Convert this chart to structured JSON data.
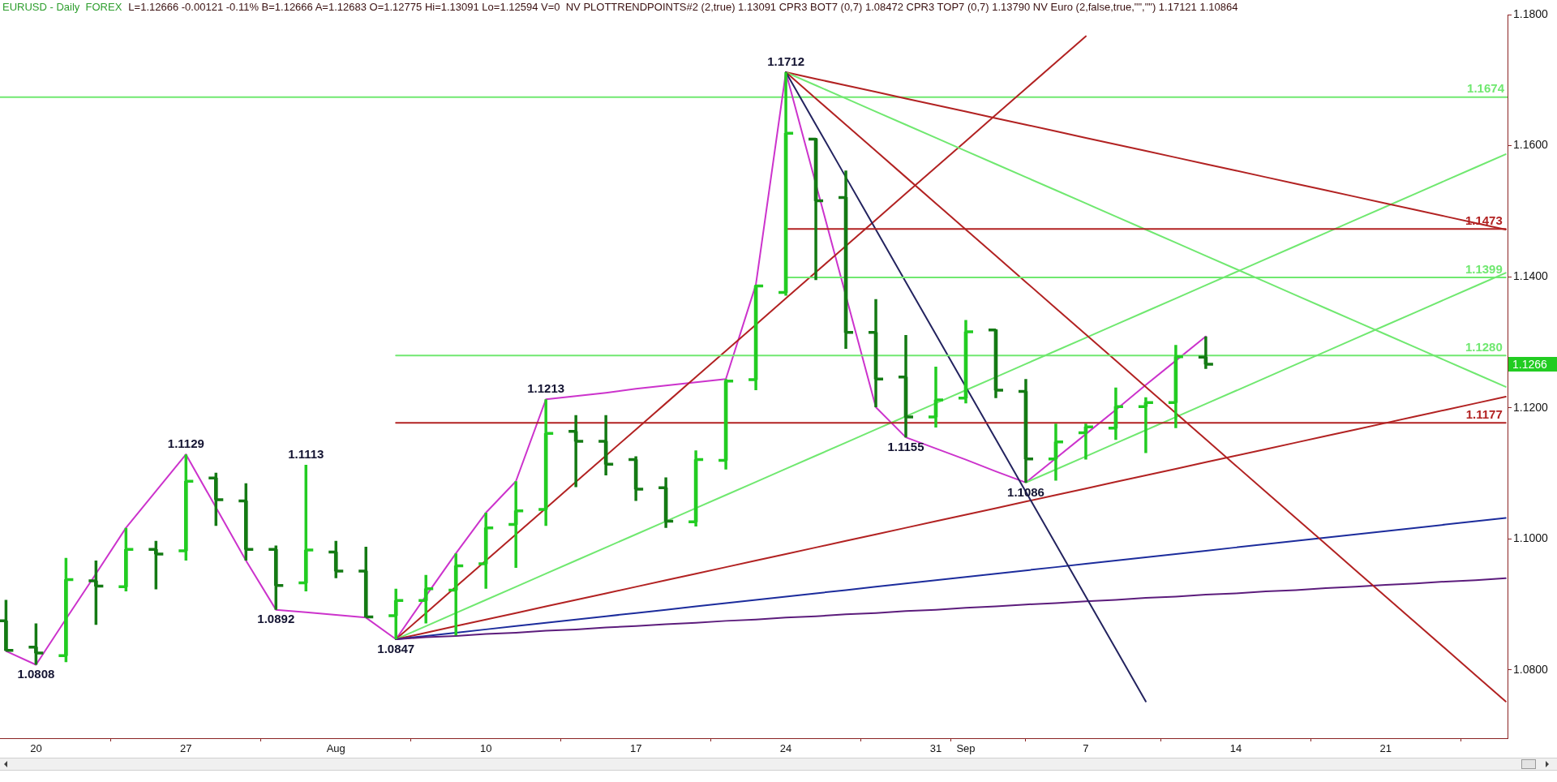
{
  "chart_data": {
    "type": "candlestick",
    "title": "EURUSD - Daily  FOREX",
    "subtitle": "L=1.12666 -0.00121 -0.11% B=1.12666 A=1.12683 O=1.12775 Hi=1.13091 Lo=1.12594 V=0  NV PLOTTRENDPOINTS#2 (2,true) 1.13091 CPR3 BOT7 (0,7) 1.08472 CPR3 TOP7 (0,7) 1.13790 NV Euro (2,false,true,\"\",\"\") 1.17121 1.10864",
    "color": "#22cc22",
    "colors": [
      "#147a14",
      "#147a14",
      "#22cc22",
      "#147a14",
      "#22cc22",
      "#147a14",
      "#22cc22",
      "#147a14",
      "#147a14",
      "#147a14",
      "#22cc22",
      "#147a14",
      "#147a14",
      "#22cc22",
      "#22cc22",
      "#22cc22",
      "#22cc22",
      "#22cc22",
      "#22cc22",
      "#147a14",
      "#147a14",
      "#147a14",
      "#147a14",
      "#22cc22",
      "#22cc22",
      "#22cc22",
      "#22cc22",
      "#147a14",
      "#147a14",
      "#147a14",
      "#147a14",
      "#22cc22",
      "#22cc22",
      "#147a14",
      "#147a14",
      "#22cc22",
      "#22cc22",
      "#22cc22",
      "#22cc22",
      "#22cc22",
      "#147a14",
      null,
      null,
      null,
      null,
      null,
      null,
      null,
      null,
      null,
      null
    ],
    "categories": [
      null,
      "20",
      null,
      null,
      null,
      null,
      "27",
      null,
      null,
      null,
      null,
      "Aug",
      null,
      null,
      null,
      null,
      "10",
      null,
      null,
      null,
      null,
      "17",
      null,
      null,
      null,
      null,
      "24",
      null,
      null,
      null,
      null,
      "31",
      "Sep",
      null,
      null,
      null,
      "7",
      null,
      null,
      null,
      null,
      "14",
      null,
      null,
      null,
      null,
      "21",
      null,
      null,
      null,
      null
    ],
    "ohlc": [
      [
        1.0875,
        1.0907,
        1.0829,
        1.083
      ],
      [
        1.0835,
        1.0871,
        1.0808,
        1.0826
      ],
      [
        1.0822,
        1.0971,
        1.0812,
        1.0938
      ],
      [
        1.0936,
        1.0967,
        1.0869,
        1.0928
      ],
      [
        1.0927,
        1.1017,
        1.092,
        1.0984
      ],
      [
        1.0984,
        1.0997,
        1.0923,
        1.0977
      ],
      [
        1.0982,
        1.1129,
        1.0967,
        1.1088
      ],
      [
        1.1093,
        1.1101,
        1.102,
        1.106
      ],
      [
        1.1058,
        1.1085,
        1.0967,
        1.0984
      ],
      [
        1.0984,
        1.099,
        1.0892,
        1.0929
      ],
      [
        1.0933,
        1.1113,
        1.092,
        1.0983
      ],
      [
        1.098,
        1.0997,
        1.094,
        1.0951
      ],
      [
        1.0951,
        1.0988,
        1.088,
        1.0881
      ],
      [
        1.0883,
        1.0924,
        1.0847,
        1.0906
      ],
      [
        1.0906,
        1.0945,
        1.0871,
        1.0924
      ],
      [
        1.0922,
        1.0978,
        1.0853,
        1.0959
      ],
      [
        1.0962,
        1.104,
        1.0924,
        1.1017
      ],
      [
        1.1022,
        1.1088,
        1.0956,
        1.1043
      ],
      [
        1.1045,
        1.1213,
        1.102,
        1.1161
      ],
      [
        1.1164,
        1.1189,
        1.1079,
        1.1149
      ],
      [
        1.1149,
        1.1189,
        1.1097,
        1.1114
      ],
      [
        1.1121,
        1.1126,
        1.1058,
        1.1076
      ],
      [
        1.1078,
        1.1094,
        1.1017,
        1.1027
      ],
      [
        1.1026,
        1.1135,
        1.1019,
        1.1121
      ],
      [
        1.112,
        1.1244,
        1.1106,
        1.1241
      ],
      [
        1.1243,
        1.1388,
        1.1227,
        1.1386
      ],
      [
        1.1376,
        1.1712,
        1.1371,
        1.1619
      ],
      [
        1.161,
        1.1612,
        1.1395,
        1.1516
      ],
      [
        1.1521,
        1.1562,
        1.129,
        1.1315
      ],
      [
        1.1315,
        1.1366,
        1.1201,
        1.1244
      ],
      [
        1.1247,
        1.1311,
        1.1155,
        1.1186
      ],
      [
        1.1186,
        1.1263,
        1.117,
        1.1212
      ],
      [
        1.1215,
        1.1334,
        1.1207,
        1.1316
      ],
      [
        1.1319,
        1.132,
        1.1215,
        1.1227
      ],
      [
        1.1225,
        1.1244,
        1.1086,
        1.1122
      ],
      [
        1.1122,
        1.1176,
        1.1089,
        1.1148
      ],
      [
        1.1162,
        1.1176,
        1.1121,
        1.1171
      ],
      [
        1.1169,
        1.1231,
        1.1151,
        1.1202
      ],
      [
        1.1202,
        1.1216,
        1.1131,
        1.1208
      ],
      [
        1.1208,
        1.1296,
        1.1169,
        1.1278
      ],
      [
        1.12775,
        1.13091,
        1.12594,
        1.12666
      ],
      null,
      null,
      null,
      null,
      null,
      null,
      null,
      null,
      null,
      null
    ],
    "series": [
      {
        "type": "line",
        "color": "#cc33cc",
        "values": [
          1.0829,
          1.0808,
          1.0878,
          1.0947,
          1.1017,
          1.1073,
          1.1129,
          1.1048,
          1.0967,
          1.0892,
          1.0888,
          1.0884,
          1.088,
          1.0847,
          1.0913,
          1.0978,
          1.104,
          1.1088,
          1.1213,
          1.1218,
          1.1223,
          1.1229,
          1.1234,
          1.1239,
          1.1244,
          1.1388,
          1.1712,
          null,
          null,
          1.1201,
          1.1155,
          1.1138,
          1.1121,
          1.1103,
          1.1086,
          1.1123,
          1.116,
          1.1197,
          1.1235,
          1.1272,
          1.1309,
          null,
          null,
          null,
          null,
          null,
          null,
          null,
          null,
          null,
          null
        ]
      },
      {
        "type": "line",
        "color": "#b22222",
        "values": [
          null,
          null,
          null,
          null,
          null,
          null,
          null,
          null,
          null,
          null,
          null,
          null,
          null,
          1.0847,
          1.0887,
          1.0927,
          1.0967,
          1.1007,
          1.1047,
          1.1087,
          1.1127,
          1.1167,
          1.1207,
          1.1247,
          1.1287,
          1.1327,
          1.1367,
          1.1407,
          1.1447,
          1.1487,
          1.1527,
          1.1567,
          1.1607,
          1.1647,
          1.1687,
          1.1727,
          1.1767,
          null,
          null,
          null,
          null,
          null,
          null,
          null,
          null,
          null,
          null,
          null,
          null,
          null,
          null
        ]
      },
      {
        "type": "line",
        "color": "#70e870",
        "values": [
          null,
          null,
          null,
          null,
          null,
          null,
          null,
          null,
          null,
          null,
          null,
          null,
          null,
          1.0847,
          1.0867,
          1.0887,
          1.0907,
          1.0927,
          1.0947,
          1.0967,
          1.0987,
          1.1007,
          1.1027,
          1.1047,
          1.1067,
          1.1087,
          1.1107,
          1.1127,
          1.1147,
          1.1167,
          1.1187,
          1.1207,
          1.1227,
          1.1247,
          1.1267,
          1.1287,
          1.1307,
          1.1327,
          1.1347,
          1.1367,
          1.1387,
          1.1407,
          1.1427,
          1.1447,
          1.1467,
          1.1487,
          1.1507,
          1.1527,
          1.1547,
          1.1567,
          1.1587
        ]
      },
      {
        "type": "line",
        "color": "#b22222",
        "values": [
          null,
          null,
          null,
          null,
          null,
          null,
          null,
          null,
          null,
          null,
          null,
          null,
          null,
          1.0847,
          1.0857,
          1.0867,
          1.0877,
          1.0887,
          1.0897,
          1.0907,
          1.0917,
          1.0927,
          1.0937,
          1.0947,
          1.0957,
          1.0967,
          1.0977,
          1.0987,
          1.0997,
          1.1007,
          1.1017,
          1.1027,
          1.1037,
          1.1047,
          1.1057,
          1.1067,
          1.1077,
          1.1087,
          1.1097,
          1.1107,
          1.1117,
          1.1127,
          1.1137,
          1.1147,
          1.1157,
          1.1167,
          1.1177,
          1.1187,
          1.1197,
          1.1207,
          1.1217
        ]
      },
      {
        "type": "line",
        "color": "#1c2c9c",
        "values": [
          null,
          null,
          null,
          null,
          null,
          null,
          null,
          null,
          null,
          null,
          null,
          null,
          null,
          1.0847,
          1.0852,
          1.0857,
          1.0862,
          1.0867,
          1.0872,
          1.0877,
          1.0882,
          1.0887,
          1.0892,
          1.0897,
          1.0902,
          1.0907,
          1.0912,
          1.0917,
          1.0922,
          1.0927,
          1.0932,
          1.0937,
          1.0942,
          1.0947,
          1.0952,
          1.0957,
          1.0962,
          1.0967,
          1.0972,
          1.0977,
          1.0982,
          1.0987,
          1.0992,
          1.0997,
          1.1002,
          1.1007,
          1.1012,
          1.1017,
          1.1022,
          1.1027,
          1.1032
        ]
      },
      {
        "type": "line",
        "color": "#5c1c7c",
        "values": [
          null,
          null,
          null,
          null,
          null,
          null,
          null,
          null,
          null,
          null,
          null,
          null,
          null,
          1.0847,
          1.085,
          1.0852,
          1.0855,
          1.0857,
          1.086,
          1.0862,
          1.0865,
          1.0867,
          1.087,
          1.0872,
          1.0875,
          1.0877,
          1.088,
          1.0882,
          1.0885,
          1.0887,
          1.089,
          1.0892,
          1.0895,
          1.0897,
          1.09,
          1.0902,
          1.0905,
          1.0907,
          1.091,
          1.0912,
          1.0915,
          1.0917,
          1.092,
          1.0922,
          1.0925,
          1.0927,
          1.093,
          1.0932,
          1.0935,
          1.0937,
          1.094
        ]
      },
      {
        "type": "line",
        "color": "#70e870",
        "values": [
          null,
          null,
          null,
          null,
          null,
          null,
          null,
          null,
          null,
          null,
          null,
          null,
          null,
          null,
          null,
          null,
          null,
          null,
          null,
          null,
          null,
          null,
          null,
          null,
          null,
          null,
          null,
          null,
          null,
          null,
          null,
          null,
          null,
          null,
          1.1086,
          1.1106,
          1.1126,
          1.1146,
          1.1166,
          1.1186,
          1.1206,
          1.1226,
          1.1246,
          1.1266,
          1.1286,
          1.1306,
          1.1326,
          1.1346,
          1.1366,
          1.1386,
          1.1406
        ]
      },
      {
        "type": "line",
        "color": "#b22222",
        "values": [
          null,
          null,
          null,
          null,
          null,
          null,
          null,
          null,
          null,
          null,
          null,
          null,
          null,
          null,
          null,
          null,
          null,
          null,
          null,
          null,
          null,
          null,
          null,
          null,
          null,
          null,
          1.1712,
          1.1702,
          1.1692,
          1.1682,
          1.1672,
          1.1662,
          1.1652,
          1.1642,
          1.1632,
          1.1622,
          1.1612,
          1.1602,
          1.1592,
          1.1582,
          1.1572,
          1.1562,
          1.1552,
          1.1542,
          1.1532,
          1.1522,
          1.1512,
          1.1502,
          1.1492,
          1.1482,
          1.1472
        ]
      },
      {
        "type": "line",
        "color": "#70e870",
        "values": [
          null,
          null,
          null,
          null,
          null,
          null,
          null,
          null,
          null,
          null,
          null,
          null,
          null,
          null,
          null,
          null,
          null,
          null,
          null,
          null,
          null,
          null,
          null,
          null,
          null,
          null,
          1.1712,
          1.1692,
          1.1672,
          1.1652,
          1.1632,
          1.1612,
          1.1592,
          1.1572,
          1.1552,
          1.1532,
          1.1512,
          1.1492,
          1.1472,
          1.1452,
          1.1432,
          1.1412,
          1.1392,
          1.1372,
          1.1352,
          1.1332,
          1.1312,
          1.1292,
          1.1272,
          1.1252,
          1.1232
        ]
      },
      {
        "type": "line",
        "color": "#b22222",
        "values": [
          null,
          null,
          null,
          null,
          null,
          null,
          null,
          null,
          null,
          null,
          null,
          null,
          null,
          null,
          null,
          null,
          null,
          null,
          null,
          null,
          null,
          null,
          null,
          null,
          null,
          null,
          1.1712,
          1.1672,
          1.1632,
          1.1592,
          1.1552,
          1.1512,
          1.1472,
          1.1432,
          1.1392,
          1.1352,
          1.1312,
          1.1272,
          1.1232,
          1.1192,
          1.1152,
          1.1112,
          1.1072,
          1.1032,
          1.0992,
          1.0952,
          1.0912,
          1.0872,
          1.0832,
          1.0792,
          1.0752
        ]
      },
      {
        "type": "line",
        "color": "#23235f",
        "values": [
          null,
          null,
          null,
          null,
          null,
          null,
          null,
          null,
          null,
          null,
          null,
          null,
          null,
          null,
          null,
          null,
          null,
          null,
          null,
          null,
          null,
          null,
          null,
          null,
          null,
          null,
          1.1712,
          1.1632,
          1.1552,
          1.1472,
          1.1392,
          1.1312,
          1.1232,
          1.1152,
          1.1072,
          1.0992,
          1.0912,
          1.0832,
          1.0752,
          null,
          null,
          null,
          null,
          null,
          null,
          null,
          null,
          null,
          null,
          null,
          null
        ]
      },
      {
        "type": "line",
        "name": "1.1473",
        "color": "#b22222",
        "values": [
          null,
          null,
          null,
          null,
          null,
          null,
          null,
          null,
          null,
          null,
          null,
          null,
          null,
          null,
          null,
          null,
          null,
          null,
          null,
          null,
          null,
          null,
          null,
          null,
          null,
          null,
          1.1473,
          1.1473,
          1.1473,
          1.1473,
          1.1473,
          1.1473,
          1.1473,
          1.1473,
          1.1473,
          1.1473,
          1.1473,
          1.1473,
          1.1473,
          1.1473,
          1.1473,
          1.1473,
          1.1473,
          1.1473,
          1.1473,
          1.1473,
          1.1473,
          1.1473,
          1.1473,
          1.1473,
          1.1473
        ]
      },
      {
        "type": "line",
        "name": "1.1399",
        "color": "#70e870",
        "values": [
          null,
          null,
          null,
          null,
          null,
          null,
          null,
          null,
          null,
          null,
          null,
          null,
          null,
          null,
          null,
          null,
          null,
          null,
          null,
          null,
          null,
          null,
          null,
          null,
          null,
          null,
          1.1399,
          1.1399,
          1.1399,
          1.1399,
          1.1399,
          1.1399,
          1.1399,
          1.1399,
          1.1399,
          1.1399,
          1.1399,
          1.1399,
          1.1399,
          1.1399,
          1.1399,
          1.1399,
          1.1399,
          1.1399,
          1.1399,
          1.1399,
          1.1399,
          1.1399,
          1.1399,
          1.1399,
          1.1399
        ]
      },
      {
        "type": "line",
        "name": "1.1280",
        "color": "#70e870",
        "values": [
          null,
          null,
          null,
          null,
          null,
          null,
          null,
          null,
          null,
          null,
          null,
          null,
          null,
          1.128,
          1.128,
          1.128,
          1.128,
          1.128,
          1.128,
          1.128,
          1.128,
          1.128,
          1.128,
          1.128,
          1.128,
          1.128,
          1.128,
          1.128,
          1.128,
          1.128,
          1.128,
          1.128,
          1.128,
          1.128,
          1.128,
          1.128,
          1.128,
          1.128,
          1.128,
          1.128,
          1.128,
          1.128,
          1.128,
          1.128,
          1.128,
          1.128,
          1.128,
          1.128,
          1.128,
          1.128,
          1.128
        ]
      },
      {
        "type": "line",
        "name": "1.1177",
        "color": "#b22222",
        "values": [
          null,
          null,
          null,
          null,
          null,
          null,
          null,
          null,
          null,
          null,
          null,
          null,
          null,
          1.1177,
          1.1177,
          1.1177,
          1.1177,
          1.1177,
          1.1177,
          1.1177,
          1.1177,
          1.1177,
          1.1177,
          1.1177,
          1.1177,
          1.1177,
          1.1177,
          1.1177,
          1.1177,
          1.1177,
          1.1177,
          1.1177,
          1.1177,
          1.1177,
          1.1177,
          1.1177,
          1.1177,
          1.1177,
          1.1177,
          1.1177,
          1.1177,
          1.1177,
          1.1177,
          1.1177,
          1.1177,
          1.1177,
          1.1177,
          1.1177,
          1.1177,
          1.1177,
          1.1177
        ]
      }
    ],
    "ref_lines": [
      {
        "axis": "y",
        "value": 1.1674,
        "label": "1.1674",
        "color": "#70e870"
      }
    ],
    "annotations": [
      {
        "text": "1.0808",
        "y": 1.0808
      },
      {
        "text": "1.1129",
        "y": 1.1129
      },
      {
        "text": "1.0892",
        "y": 1.0892
      },
      {
        "text": "1.1113",
        "y": 1.1113
      },
      {
        "text": "1.0847",
        "y": 1.0847
      },
      {
        "text": "1.1213",
        "y": 1.1213
      },
      {
        "text": "1.1712",
        "y": 1.1712
      },
      {
        "text": "1.1155",
        "y": 1.1155
      },
      {
        "text": "1.1086",
        "y": 1.1086
      },
      "1.1266"
    ],
    "ylim": [
      1.0696,
      1.18
    ],
    "yticks": [
      {
        "value": 1.08,
        "label": "1.0800"
      },
      {
        "value": 1.1,
        "label": "1.1000"
      },
      {
        "value": 1.12,
        "label": "1.1200"
      },
      {
        "value": 1.14,
        "label": "1.1400"
      },
      {
        "value": 1.16,
        "label": "1.1600"
      },
      {
        "value": 1.18,
        "label": "1.1800"
      }
    ]
  }
}
